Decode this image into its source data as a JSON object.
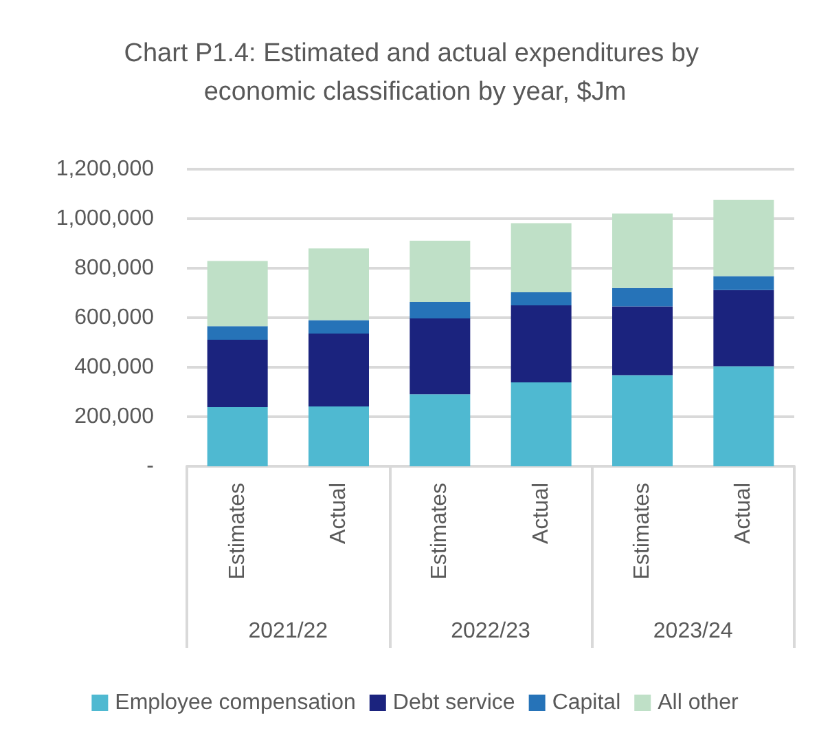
{
  "chart_data": {
    "type": "bar",
    "title": "Chart P1.4: Estimated and actual expenditures by economic classification by year, $Jm",
    "categories": [
      "Estimates",
      "Actual",
      "Estimates",
      "Actual",
      "Estimates",
      "Actual"
    ],
    "annotations": [
      "2021/22",
      "2022/23",
      "2023/24"
    ],
    "stacked": true,
    "series": [
      {
        "name": "Employee compensation",
        "color": "#4fb9d1",
        "values": [
          239000,
          242000,
          291000,
          339000,
          368000,
          404000
        ]
      },
      {
        "name": "Debt service",
        "color": "#1b237e",
        "values": [
          272000,
          294000,
          306000,
          311000,
          278000,
          308000
        ]
      },
      {
        "name": "Capital",
        "color": "#2673b8",
        "values": [
          55000,
          54000,
          67000,
          53000,
          74000,
          56000
        ]
      },
      {
        "name": "All other",
        "color": "#bfe0c7",
        "values": [
          263000,
          290000,
          247000,
          279000,
          301000,
          308000
        ]
      }
    ],
    "ylim": [
      0,
      1200000
    ],
    "yticks": [
      {
        "value": 0,
        "label": "-"
      },
      {
        "value": 200000,
        "label": "200,000"
      },
      {
        "value": 400000,
        "label": "400,000"
      },
      {
        "value": 600000,
        "label": "600,000"
      },
      {
        "value": 800000,
        "label": "800,000"
      },
      {
        "value": 1000000,
        "label": "1,000,000"
      },
      {
        "value": 1200000,
        "label": "1,200,000"
      }
    ],
    "grid": "y",
    "legend": "bottom"
  }
}
